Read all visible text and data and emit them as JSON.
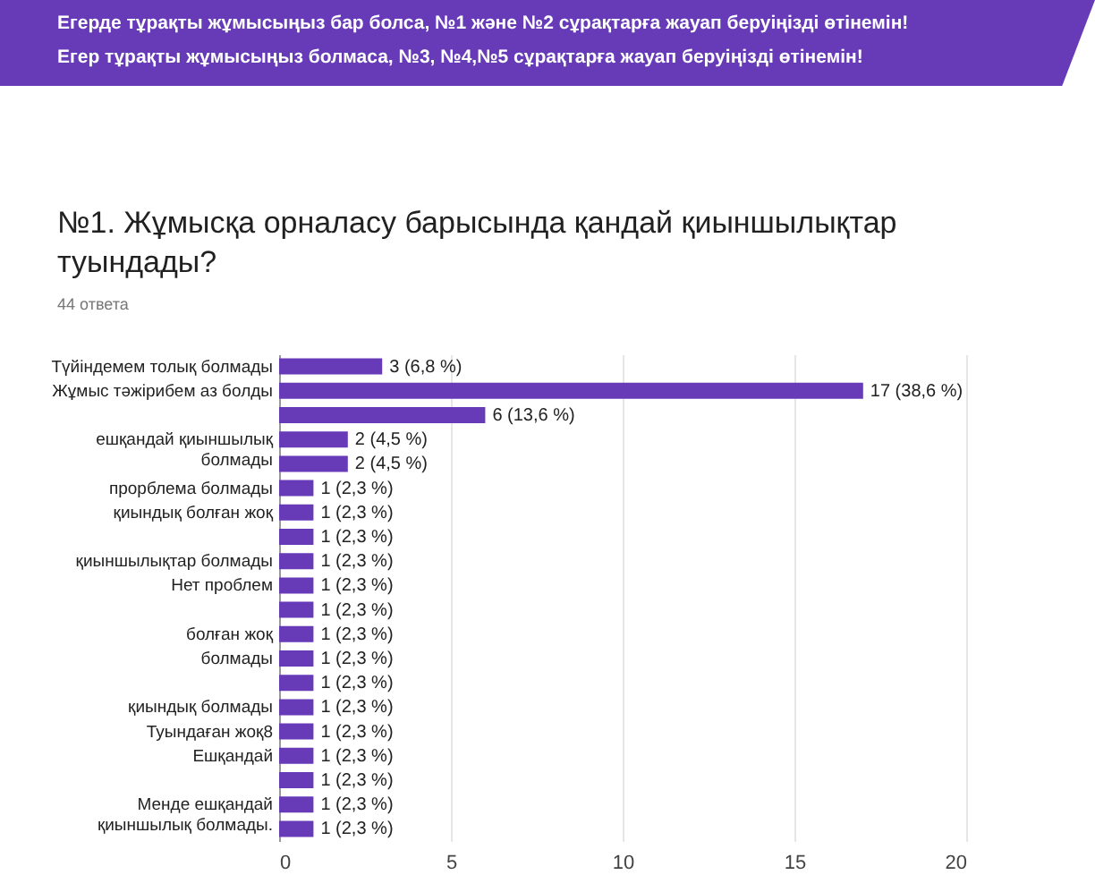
{
  "chart_data": {
    "type": "bar",
    "orientation": "horizontal",
    "title": "№1. Жұмысқа орналасу барысында қандай қиыншылықтар туындады?",
    "subtitle": "44 ответа",
    "annotations": [
      "Егерде тұрақты жұмысыңыз бар болса, №1 және №2 сұрақтарға жауап беруіңізді өтінемін!",
      "Егер тұрақты жұмысыңыз болмаса, №3, №4,№5 сұрақтарға жауап беруіңізді өтінемін!"
    ],
    "categories": [
      "Түйіндемем толық болмады",
      "Жұмыс тәжірибем аз болды",
      null,
      "ешқандай қиыншылық болмады",
      null,
      "прорблема болмады",
      "қиындық болған жоқ",
      null,
      "қиыншылықтар болмады",
      "Нет проблем",
      null,
      "болған жоқ",
      "болмады",
      null,
      "қиындық болмады",
      "Туындаған жоқ8",
      "Ешқандай",
      null,
      "Менде ешқандай қиыншылық болмады.",
      null
    ],
    "values": [
      3,
      17,
      6,
      2,
      2,
      1,
      1,
      1,
      1,
      1,
      1,
      1,
      1,
      1,
      1,
      1,
      1,
      1,
      1,
      1
    ],
    "value_labels": [
      "3 (6,8 %)",
      "17 (38,6 %)",
      "6 (13,6 %)",
      "2 (4,5 %)",
      "2 (4,5 %)",
      "1 (2,3 %)",
      "1 (2,3 %)",
      "1 (2,3 %)",
      "1 (2,3 %)",
      "1 (2,3 %)",
      "1 (2,3 %)",
      "1 (2,3 %)",
      "1 (2,3 %)",
      "1 (2,3 %)",
      "1 (2,3 %)",
      "1 (2,3 %)",
      "1 (2,3 %)",
      "1 (2,3 %)",
      "1 (2,3 %)",
      "1 (2,3 %)"
    ],
    "color": "#673ab7",
    "xlim": [
      0,
      20
    ],
    "xticks": [
      0,
      5,
      10,
      15,
      20
    ],
    "grid": "x"
  }
}
